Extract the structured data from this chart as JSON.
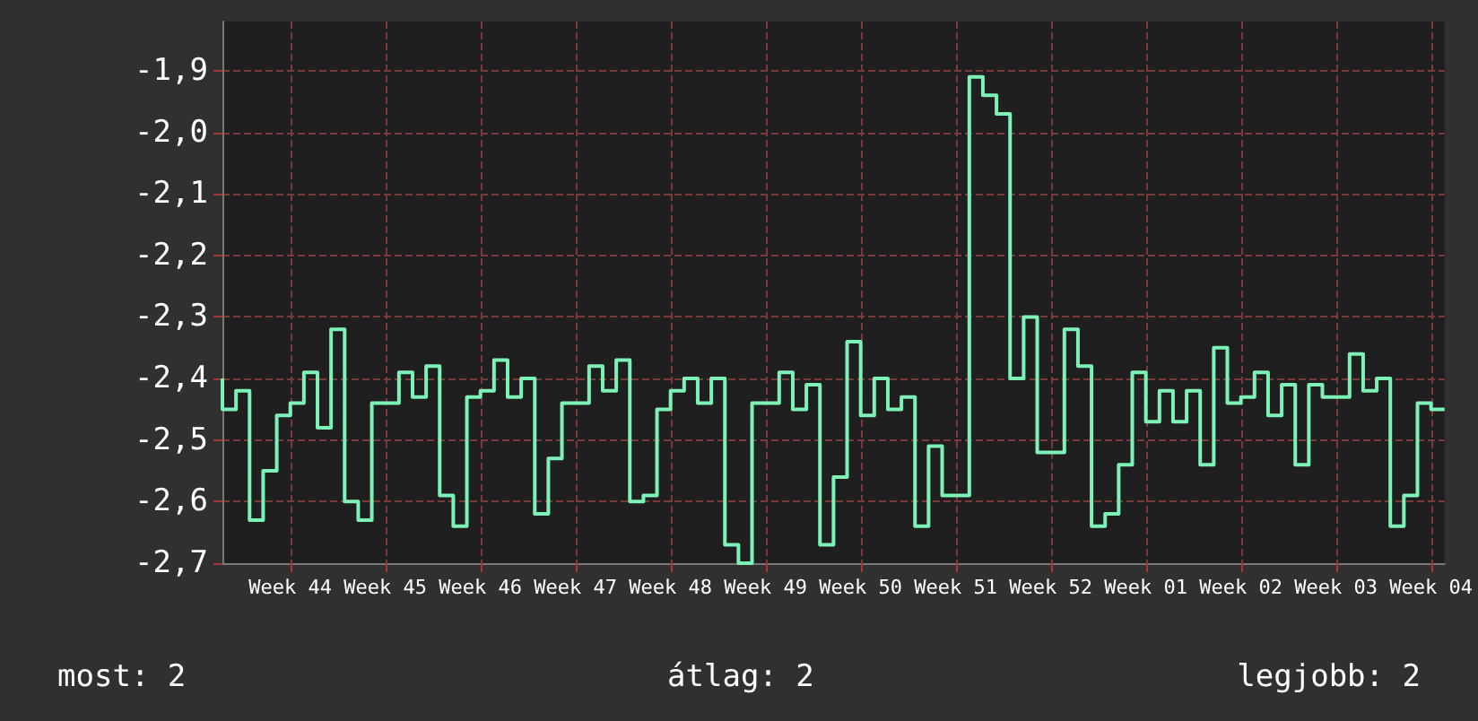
{
  "chart_data": {
    "type": "step",
    "categories": [
      null,
      null,
      null,
      null,
      null,
      "Week 44",
      null,
      null,
      null,
      null,
      null,
      null,
      "Week 45",
      null,
      null,
      null,
      null,
      null,
      null,
      "Week 46",
      null,
      null,
      null,
      null,
      null,
      null,
      "Week 47",
      null,
      null,
      null,
      null,
      null,
      null,
      "Week 48",
      null,
      null,
      null,
      null,
      null,
      null,
      "Week 49",
      null,
      null,
      null,
      null,
      null,
      null,
      "Week 50",
      null,
      null,
      null,
      null,
      null,
      null,
      "Week 51",
      null,
      null,
      null,
      null,
      null,
      null,
      "Week 52",
      null,
      null,
      null,
      null,
      null,
      null,
      "Week 01",
      null,
      null,
      null,
      null,
      null,
      null,
      "Week 02",
      null,
      null,
      null,
      null,
      null,
      null,
      "Week 03",
      null,
      null,
      null,
      null,
      null,
      null,
      "Week 04",
      null
    ],
    "series": [
      {
        "color": "#7df2b6",
        "values": [
          -2.4,
          -2.45,
          -2.42,
          -2.63,
          -2.55,
          -2.46,
          -2.44,
          -2.39,
          -2.48,
          -2.32,
          -2.6,
          -2.63,
          -2.44,
          -2.44,
          -2.39,
          -2.43,
          -2.38,
          -2.59,
          -2.64,
          -2.43,
          -2.42,
          -2.37,
          -2.43,
          -2.4,
          -2.62,
          -2.53,
          -2.44,
          -2.44,
          -2.38,
          -2.42,
          -2.37,
          -2.6,
          -2.59,
          -2.45,
          -2.42,
          -2.4,
          -2.44,
          -2.4,
          -2.67,
          -2.7,
          -2.44,
          -2.44,
          -2.39,
          -2.45,
          -2.41,
          -2.67,
          -2.56,
          -2.34,
          -2.46,
          -2.4,
          -2.45,
          -2.43,
          -2.64,
          -2.51,
          -2.59,
          -2.59,
          -1.91,
          -1.94,
          -1.97,
          -2.4,
          -2.3,
          -2.52,
          -2.52,
          -2.32,
          -2.38,
          -2.64,
          -2.62,
          -2.54,
          -2.39,
          -2.47,
          -2.42,
          -2.47,
          -2.42,
          -2.54,
          -2.35,
          -2.44,
          -2.43,
          -2.39,
          -2.46,
          -2.41,
          -2.54,
          -2.41,
          -2.43,
          -2.43,
          -2.36,
          -2.42,
          -2.4,
          -2.64,
          -2.59,
          -2.44,
          -2.45
        ]
      }
    ],
    "ylim": [
      -2.7,
      -1.82
    ],
    "yticks": [
      {
        "value": -2.7,
        "label": "-2,7"
      },
      {
        "value": -2.6,
        "label": "-2,6"
      },
      {
        "value": -2.5,
        "label": "-2,5"
      },
      {
        "value": -2.4,
        "label": "-2,4"
      },
      {
        "value": -2.3,
        "label": "-2,3"
      },
      {
        "value": -2.2,
        "label": "-2,2"
      },
      {
        "value": -2.1,
        "label": "-2,1"
      },
      {
        "value": -2.0,
        "label": "-2,0"
      },
      {
        "value": -1.9,
        "label": "-1,9"
      }
    ],
    "grid": true,
    "marker": "none",
    "line_style": "solid",
    "annotations": [
      "most: 2",
      "átlag: 2",
      "legjobb: 2"
    ]
  }
}
